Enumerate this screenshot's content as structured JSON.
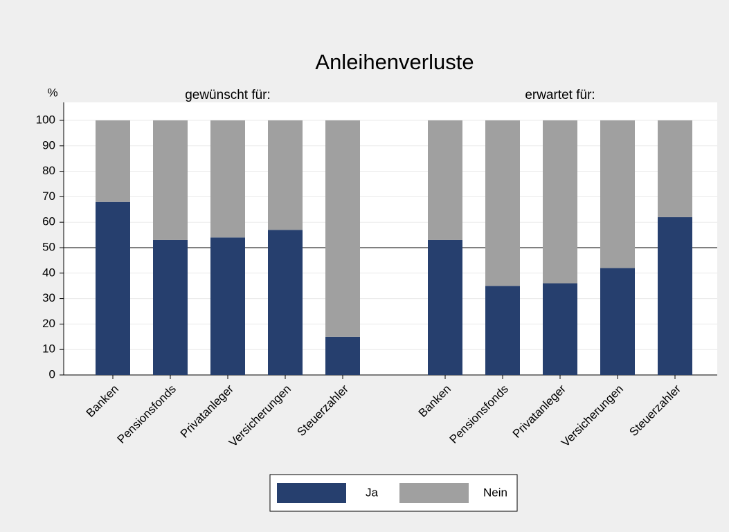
{
  "chart_data": {
    "type": "bar",
    "stacked": true,
    "title": "Anleihenverluste",
    "ylabel": "%",
    "groups": [
      {
        "label": "gewünscht für:",
        "categories": [
          "Banken",
          "Pensionsfonds",
          "Privatanleger",
          "Versicherungen",
          "Steuerzahler"
        ]
      },
      {
        "label": "erwartet für:",
        "categories": [
          "Banken",
          "Pensionsfonds",
          "Privatanleger",
          "Versicherungen",
          "Steuerzahler"
        ]
      }
    ],
    "series": [
      {
        "name": "Ja",
        "color": "#263f6e",
        "values": [
          68,
          53,
          54,
          57,
          15,
          53,
          35,
          36,
          42,
          62
        ]
      },
      {
        "name": "Nein",
        "color": "#a0a0a0",
        "values": [
          32,
          47,
          46,
          43,
          85,
          47,
          65,
          64,
          58,
          38
        ]
      }
    ],
    "ylim": [
      0,
      100
    ],
    "yticks": [
      0,
      10,
      20,
      30,
      40,
      50,
      60,
      70,
      80,
      90,
      100
    ],
    "grid": true,
    "hline": 50,
    "legend": "bottom"
  }
}
